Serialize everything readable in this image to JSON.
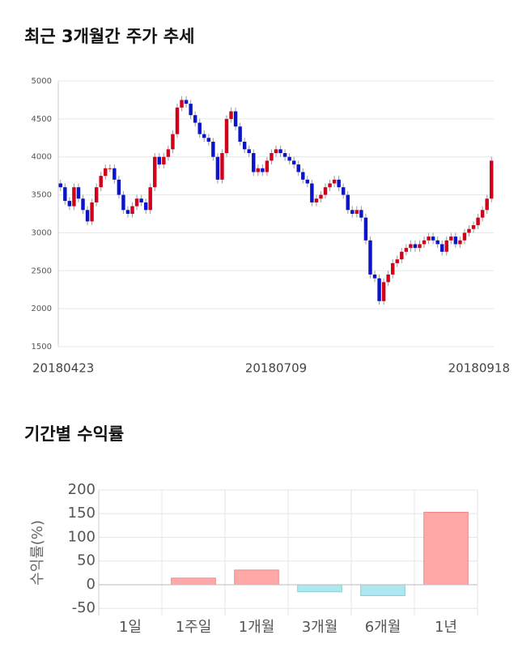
{
  "chart_data": [
    {
      "type": "candlestick",
      "title": "최근 3개월간 주가 추세",
      "categories": [
        "20180423",
        null,
        null,
        null,
        null,
        null,
        null,
        null,
        null,
        null,
        null,
        null,
        null,
        null,
        null,
        null,
        null,
        null,
        null,
        null,
        null,
        null,
        null,
        null,
        null,
        null,
        null,
        null,
        null,
        null,
        null,
        null,
        null,
        null,
        null,
        null,
        null,
        null,
        null,
        null,
        null,
        null,
        null,
        null,
        null,
        null,
        null,
        null,
        "20180709",
        null,
        null,
        null,
        null,
        null,
        null,
        null,
        null,
        null,
        null,
        null,
        null,
        null,
        null,
        null,
        null,
        null,
        null,
        null,
        null,
        null,
        null,
        null,
        null,
        null,
        null,
        null,
        null,
        null,
        null,
        null,
        null,
        null,
        null,
        null,
        null,
        null,
        null,
        null,
        null,
        null,
        null,
        null,
        null,
        null,
        null,
        null,
        "20180918"
      ],
      "open": [
        3650,
        3600,
        3420,
        3350,
        3600,
        3450,
        3300,
        3150,
        3400,
        3600,
        3750,
        3850,
        3850,
        3700,
        3500,
        3300,
        3250,
        3350,
        3450,
        3400,
        3300,
        3600,
        4000,
        3900,
        4000,
        4100,
        4300,
        4650,
        4750,
        4700,
        4550,
        4450,
        4300,
        4250,
        4200,
        4000,
        3700,
        4050,
        4500,
        4600,
        4400,
        4200,
        4100,
        4050,
        3800,
        3850,
        3800,
        3950,
        4050,
        4100,
        4050,
        4000,
        3950,
        3900,
        3800,
        3700,
        3650,
        3400,
        3450,
        3500,
        3600,
        3650,
        3700,
        3600,
        3500,
        3300,
        3250,
        3300,
        3200,
        2900,
        2450,
        2400,
        2100,
        2350,
        2450,
        2600,
        2650,
        2750,
        2800,
        2850,
        2800,
        2850,
        2900,
        2950,
        2900,
        2850,
        2750,
        2900,
        2950,
        2850,
        2900,
        3000,
        3050,
        3100,
        3200,
        3300,
        3450
      ],
      "high": [
        3700,
        3650,
        3470,
        3650,
        3650,
        3500,
        3350,
        3450,
        3650,
        3800,
        3900,
        3900,
        3900,
        3750,
        3550,
        3350,
        3400,
        3500,
        3500,
        3450,
        3650,
        4050,
        4050,
        4050,
        4150,
        4350,
        4700,
        4800,
        4800,
        4750,
        4600,
        4500,
        4350,
        4300,
        4250,
        4050,
        4100,
        4550,
        4650,
        4650,
        4450,
        4250,
        4150,
        4100,
        3900,
        3900,
        4000,
        4100,
        4150,
        4150,
        4100,
        4050,
        4000,
        3950,
        3850,
        3750,
        3700,
        3500,
        3550,
        3650,
        3700,
        3750,
        3750,
        3650,
        3550,
        3350,
        3350,
        3350,
        3250,
        2950,
        2500,
        2450,
        2400,
        2500,
        2650,
        2700,
        2800,
        2850,
        2900,
        2900,
        2900,
        2950,
        3000,
        3000,
        2950,
        2900,
        2950,
        3000,
        3000,
        2950,
        3050,
        3100,
        3150,
        3250,
        3350,
        3500,
        4000
      ],
      "low": [
        3550,
        3370,
        3300,
        3300,
        3400,
        3250,
        3100,
        3100,
        3350,
        3550,
        3700,
        3800,
        3650,
        3450,
        3250,
        3200,
        3200,
        3300,
        3350,
        3250,
        3250,
        3550,
        3850,
        3850,
        3950,
        4050,
        4250,
        4600,
        4650,
        4500,
        4400,
        4250,
        4200,
        4150,
        3950,
        3650,
        3650,
        4000,
        4450,
        4350,
        4150,
        4050,
        4000,
        3750,
        3750,
        3750,
        3750,
        3900,
        4000,
        4000,
        3950,
        3900,
        3850,
        3750,
        3650,
        3600,
        3350,
        3350,
        3400,
        3450,
        3550,
        3600,
        3550,
        3450,
        3250,
        3200,
        3200,
        3150,
        2850,
        2400,
        2350,
        2050,
        2050,
        2300,
        2400,
        2550,
        2600,
        2700,
        2750,
        2750,
        2750,
        2800,
        2850,
        2850,
        2800,
        2700,
        2700,
        2850,
        2800,
        2800,
        2850,
        2950,
        3000,
        3050,
        3150,
        3250,
        3400
      ],
      "close": [
        3600,
        3420,
        3350,
        3600,
        3450,
        3300,
        3150,
        3400,
        3600,
        3750,
        3850,
        3850,
        3700,
        3500,
        3300,
        3250,
        3350,
        3450,
        3400,
        3300,
        3600,
        4000,
        3900,
        4000,
        4100,
        4300,
        4650,
        4750,
        4700,
        4550,
        4450,
        4300,
        4250,
        4200,
        4000,
        3700,
        4050,
        4500,
        4600,
        4400,
        4200,
        4100,
        4050,
        3800,
        3850,
        3800,
        3950,
        4050,
        4100,
        4050,
        4000,
        3950,
        3900,
        3800,
        3700,
        3650,
        3400,
        3450,
        3500,
        3600,
        3650,
        3700,
        3600,
        3500,
        3300,
        3250,
        3300,
        3200,
        2900,
        2450,
        2400,
        2100,
        2350,
        2450,
        2600,
        2650,
        2750,
        2800,
        2850,
        2800,
        2850,
        2900,
        2950,
        2900,
        2850,
        2750,
        2900,
        2950,
        2850,
        2900,
        3000,
        3050,
        3100,
        3200,
        3300,
        3450,
        3950
      ],
      "up_color": "#d0021b",
      "down_color": "#0a14c8",
      "ylim": [
        1500,
        5000
      ],
      "yticks": [
        1500,
        2000,
        2500,
        3000,
        3500,
        4000,
        4500,
        5000
      ],
      "grid": true
    },
    {
      "type": "bar",
      "title": "기간별 수익률",
      "y_label": "수익률(%)",
      "categories": [
        "1일",
        "1주일",
        "1개월",
        "3개월",
        "6개월",
        "1년"
      ],
      "values": [
        0,
        14,
        31,
        -15,
        -23,
        153
      ],
      "positive_color": "#ffa8a8",
      "negative_color": "#ade8f2",
      "ylim": [
        -65,
        200
      ],
      "yticks": [
        -50,
        0,
        50,
        100,
        150,
        200
      ],
      "grid": true
    }
  ]
}
